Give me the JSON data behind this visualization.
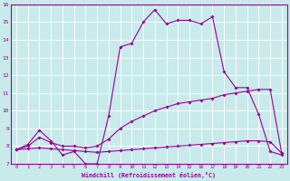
{
  "xlabel": "Windchill (Refroidissement éolien,°C)",
  "xlim": [
    -0.5,
    23.5
  ],
  "ylim": [
    7,
    16
  ],
  "xticks": [
    0,
    1,
    2,
    3,
    4,
    5,
    6,
    7,
    8,
    9,
    10,
    11,
    12,
    13,
    14,
    15,
    16,
    17,
    18,
    19,
    20,
    21,
    22,
    23
  ],
  "yticks": [
    7,
    8,
    9,
    10,
    11,
    12,
    13,
    14,
    15,
    16
  ],
  "background_color": "#c8eaea",
  "line_color": "#990099",
  "x": [
    0,
    1,
    2,
    3,
    4,
    5,
    6,
    7,
    8,
    9,
    10,
    11,
    12,
    13,
    14,
    15,
    16,
    17,
    18,
    19,
    20,
    21,
    22,
    23
  ],
  "line1": [
    7.8,
    8.1,
    8.9,
    8.3,
    7.5,
    7.7,
    7.0,
    7.0,
    9.7,
    13.6,
    13.8,
    15.0,
    15.7,
    14.9,
    15.1,
    15.1,
    14.9,
    15.3,
    12.2,
    11.3,
    11.3,
    9.8,
    7.7,
    7.5
  ],
  "line2": [
    7.8,
    8.0,
    8.5,
    8.2,
    8.0,
    8.0,
    7.9,
    8.0,
    8.4,
    9.0,
    9.4,
    9.7,
    10.0,
    10.2,
    10.4,
    10.5,
    10.6,
    10.7,
    10.9,
    11.0,
    11.1,
    11.2,
    11.2,
    7.6
  ],
  "line3": [
    7.8,
    7.85,
    7.9,
    7.85,
    7.8,
    7.75,
    7.7,
    7.65,
    7.7,
    7.75,
    7.8,
    7.85,
    7.9,
    7.95,
    8.0,
    8.05,
    8.1,
    8.15,
    8.2,
    8.25,
    8.3,
    8.3,
    8.25,
    7.6
  ]
}
